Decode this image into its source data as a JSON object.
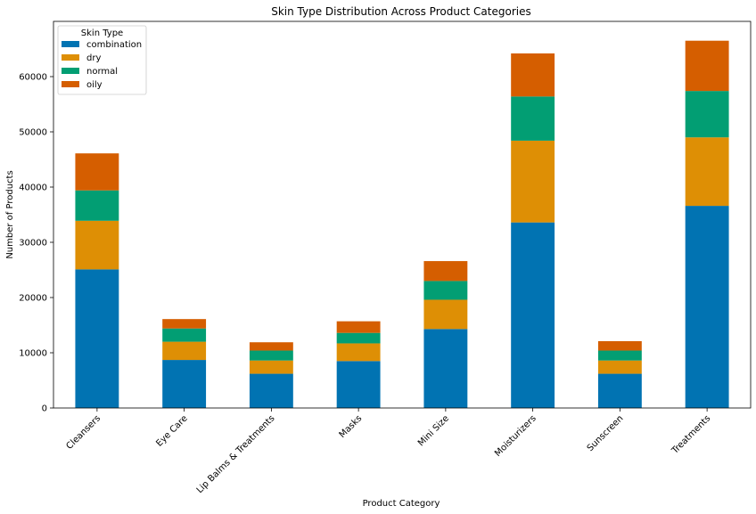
{
  "chart_data": {
    "type": "bar",
    "stacked": true,
    "title": "Skin Type Distribution Across Product Categories",
    "xlabel": "Product Category",
    "ylabel": "Number of Products",
    "ylim": [
      0,
      70000
    ],
    "yticks": [
      0,
      10000,
      20000,
      30000,
      40000,
      50000,
      60000
    ],
    "ytick_labels": [
      "0",
      "10000",
      "20000",
      "30000",
      "40000",
      "50000",
      "60000"
    ],
    "categories": [
      "Cleansers",
      "Eye Care",
      "Lip Balms & Treatments",
      "Masks",
      "Mini Size",
      "Moisturizers",
      "Sunscreen",
      "Treatments"
    ],
    "legend": {
      "title": "Skin Type",
      "position": "top-left"
    },
    "grid": false,
    "series": [
      {
        "name": "combination",
        "color": "#0173b2",
        "values": [
          25100,
          8700,
          6200,
          8500,
          14300,
          33600,
          6200,
          36600
        ]
      },
      {
        "name": "dry",
        "color": "#de8f05",
        "values": [
          8800,
          3300,
          2400,
          3200,
          5300,
          14800,
          2400,
          12400
        ]
      },
      {
        "name": "normal",
        "color": "#029e73",
        "values": [
          5500,
          2400,
          1800,
          1900,
          3400,
          8000,
          1800,
          8400
        ]
      },
      {
        "name": "oily",
        "color": "#d55e00",
        "values": [
          6700,
          1700,
          1500,
          2100,
          3600,
          7800,
          1700,
          9100
        ]
      }
    ]
  }
}
